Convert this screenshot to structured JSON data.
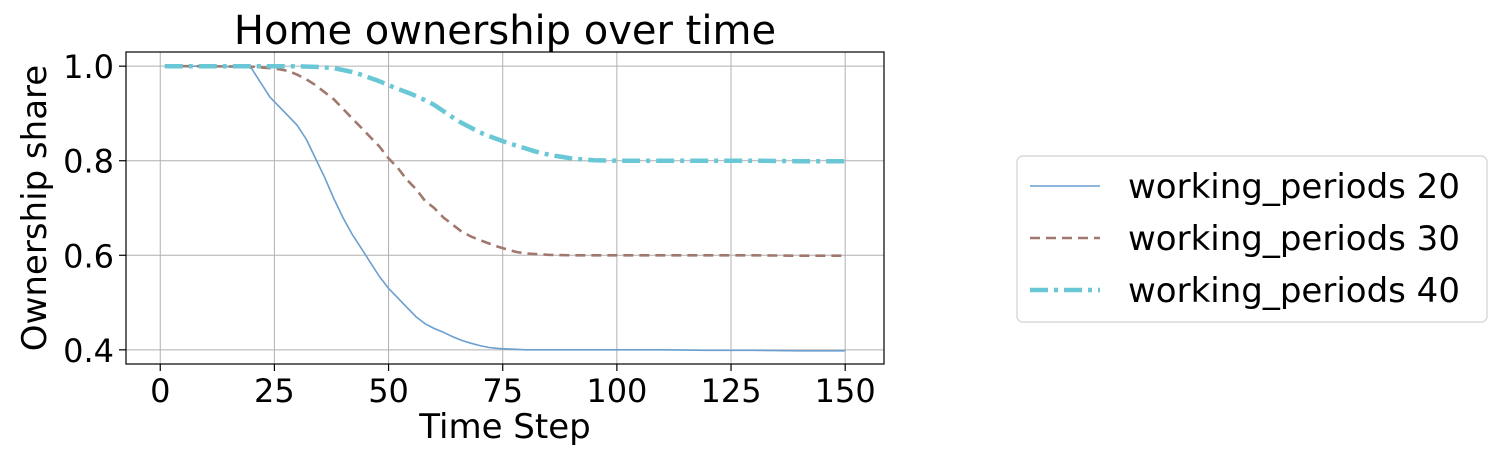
{
  "chart_data": {
    "type": "line",
    "title": "Home ownership over time",
    "xlabel": "Time Step",
    "ylabel": "Ownership share",
    "xlim": [
      -7.5,
      158.5
    ],
    "ylim": [
      0.37,
      1.03
    ],
    "xticks": [
      0,
      25,
      50,
      75,
      100,
      125,
      150
    ],
    "yticks": [
      0.4,
      0.6,
      0.8,
      1.0
    ],
    "xtick_labels": [
      "0",
      "25",
      "50",
      "75",
      "100",
      "125",
      "150"
    ],
    "ytick_labels": [
      "0.4",
      "0.6",
      "0.8",
      "1.0"
    ],
    "grid": true,
    "legend_position": "right, outside plot",
    "series": [
      {
        "name": "working_periods 20",
        "color": "#6a9fcf",
        "dash": "solid",
        "x": [
          1,
          5,
          10,
          15,
          19,
          20,
          22,
          24,
          26,
          28,
          30,
          32,
          34,
          36,
          38,
          40,
          42,
          44,
          46,
          48,
          50,
          52,
          54,
          56,
          58,
          60,
          62,
          64,
          66,
          68,
          70,
          72,
          74,
          76,
          78,
          80,
          85,
          90,
          100,
          110,
          120,
          130,
          140,
          150
        ],
        "y": [
          1.0,
          1.0,
          1.0,
          0.999,
          0.998,
          0.995,
          0.965,
          0.935,
          0.915,
          0.895,
          0.875,
          0.845,
          0.805,
          0.765,
          0.72,
          0.68,
          0.645,
          0.615,
          0.585,
          0.555,
          0.53,
          0.51,
          0.49,
          0.47,
          0.455,
          0.445,
          0.437,
          0.428,
          0.42,
          0.414,
          0.409,
          0.405,
          0.403,
          0.402,
          0.401,
          0.4,
          0.4,
          0.4,
          0.4,
          0.4,
          0.399,
          0.399,
          0.398,
          0.398
        ]
      },
      {
        "name": "working_periods 30",
        "color": "#a0786e",
        "dash": "dashed",
        "x": [
          1,
          10,
          20,
          25,
          28,
          30,
          32,
          34,
          36,
          38,
          40,
          42,
          44,
          46,
          48,
          50,
          52,
          54,
          56,
          58,
          60,
          62,
          64,
          66,
          68,
          70,
          72,
          74,
          76,
          78,
          80,
          85,
          90,
          100,
          110,
          120,
          130,
          140,
          150
        ],
        "y": [
          1.0,
          1.0,
          0.999,
          0.995,
          0.99,
          0.982,
          0.972,
          0.96,
          0.945,
          0.93,
          0.91,
          0.89,
          0.87,
          0.85,
          0.83,
          0.805,
          0.785,
          0.76,
          0.74,
          0.715,
          0.7,
          0.68,
          0.665,
          0.65,
          0.64,
          0.632,
          0.625,
          0.618,
          0.612,
          0.607,
          0.604,
          0.601,
          0.6,
          0.6,
          0.6,
          0.6,
          0.6,
          0.599,
          0.599
        ]
      },
      {
        "name": "working_periods 40",
        "color": "#6ac8d6",
        "dash": "dashdot",
        "x": [
          1,
          10,
          20,
          30,
          35,
          38,
          40,
          42,
          44,
          46,
          48,
          50,
          52,
          54,
          56,
          58,
          60,
          62,
          64,
          66,
          68,
          70,
          72,
          74,
          76,
          78,
          80,
          82,
          84,
          86,
          88,
          90,
          92,
          95,
          100,
          110,
          120,
          130,
          140,
          150
        ],
        "y": [
          1.0,
          1.0,
          1.0,
          1.0,
          0.998,
          0.996,
          0.992,
          0.988,
          0.982,
          0.975,
          0.968,
          0.96,
          0.952,
          0.945,
          0.937,
          0.928,
          0.918,
          0.905,
          0.892,
          0.88,
          0.87,
          0.86,
          0.852,
          0.845,
          0.838,
          0.832,
          0.826,
          0.82,
          0.815,
          0.811,
          0.808,
          0.805,
          0.803,
          0.801,
          0.8,
          0.8,
          0.8,
          0.8,
          0.799,
          0.799
        ]
      }
    ]
  }
}
